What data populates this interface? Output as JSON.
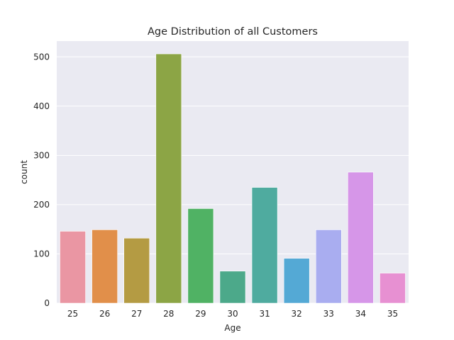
{
  "chart_data": {
    "type": "bar",
    "title": "Age Distribution of all Customers",
    "xlabel": "Age",
    "ylabel": "count",
    "categories": [
      "25",
      "26",
      "27",
      "28",
      "29",
      "30",
      "31",
      "32",
      "33",
      "34",
      "35"
    ],
    "values": [
      146,
      149,
      132,
      506,
      192,
      65,
      235,
      91,
      149,
      266,
      61
    ],
    "ylim": [
      0,
      532
    ],
    "yticks": [
      0,
      100,
      200,
      300,
      400,
      500
    ],
    "grid": true,
    "colors": [
      "#ea96a3",
      "#e18f4a",
      "#b49b43",
      "#8ca545",
      "#50b264",
      "#4ca98a",
      "#4fab9f",
      "#54a9d5",
      "#a9adf0",
      "#d696e8",
      "#e790d2"
    ],
    "background": "#eaeaf2"
  }
}
